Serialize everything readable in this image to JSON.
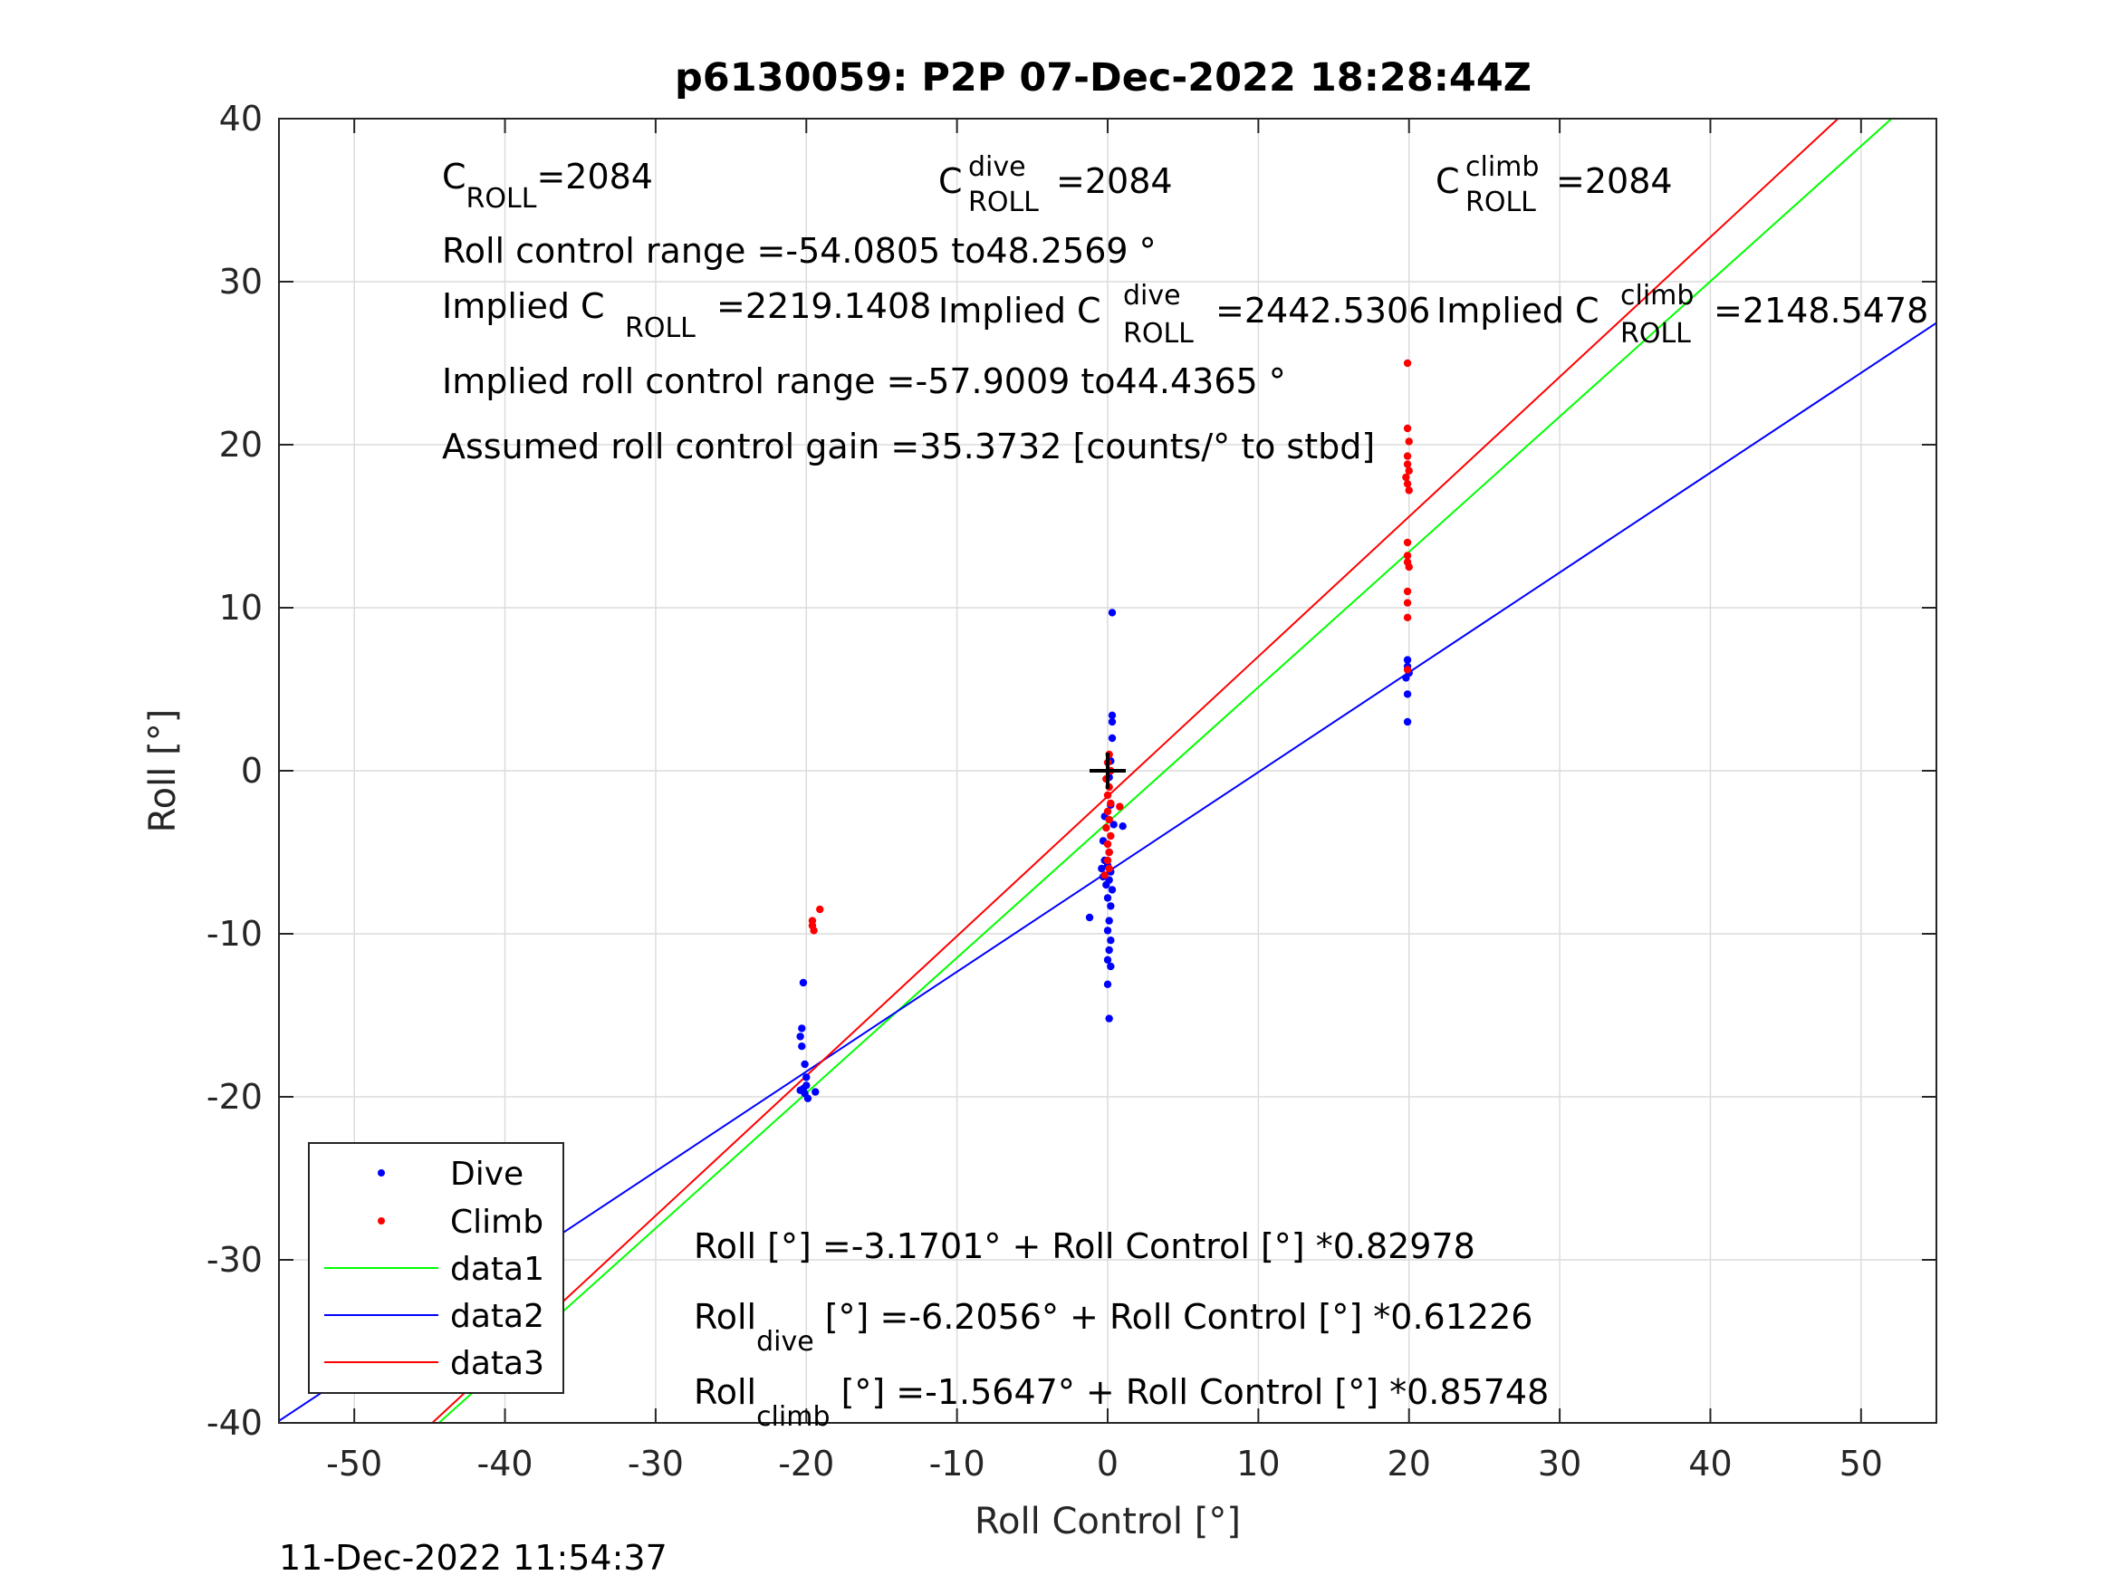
{
  "chart_data": {
    "type": "scatter",
    "title": "p6130059: P2P 07-Dec-2022 18:28:44Z",
    "xlabel": "Roll Control [°]",
    "ylabel": "Roll [°]",
    "xlim": [
      -55,
      55
    ],
    "ylim": [
      -40,
      40
    ],
    "xticks": [
      -50,
      -40,
      -30,
      -20,
      -10,
      0,
      10,
      20,
      30,
      40,
      50
    ],
    "yticks": [
      -40,
      -30,
      -20,
      -10,
      0,
      10,
      20,
      30,
      40
    ],
    "xtick_labels": [
      "-50",
      "-40",
      "-30",
      "-20",
      "-10",
      "0",
      "10",
      "20",
      "30",
      "40",
      "50"
    ],
    "ytick_labels": [
      "-40",
      "-30",
      "-20",
      "-10",
      "0",
      "10",
      "20",
      "30",
      "40"
    ],
    "grid": true,
    "legend_position": "bottom-left",
    "colors": {
      "dive": "#0000ff",
      "climb": "#ff0000",
      "data1": "#00ff00",
      "data2": "#0000ff",
      "data3": "#ff0000"
    },
    "series": [
      {
        "name": "Dive",
        "marker": "point",
        "color": "#0000ff",
        "points": [
          [
            -20.2,
            -13.0
          ],
          [
            -20.3,
            -15.8
          ],
          [
            -20.4,
            -16.3
          ],
          [
            -20.3,
            -16.9
          ],
          [
            -20.1,
            -18.0
          ],
          [
            -20.0,
            -18.8
          ],
          [
            -20.2,
            -19.5
          ],
          [
            -20.1,
            -19.8
          ],
          [
            -19.9,
            -20.1
          ],
          [
            -19.4,
            -19.7
          ],
          [
            -20.4,
            -19.6
          ],
          [
            -20.0,
            -19.3
          ],
          [
            0.3,
            9.7
          ],
          [
            0.3,
            3.4
          ],
          [
            0.3,
            3.0
          ],
          [
            0.3,
            2.0
          ],
          [
            0.2,
            0.6
          ],
          [
            0.1,
            -0.4
          ],
          [
            0.2,
            -2.1
          ],
          [
            -0.2,
            -2.8
          ],
          [
            0.4,
            -3.3
          ],
          [
            1.0,
            -3.4
          ],
          [
            -0.3,
            -4.3
          ],
          [
            0.1,
            -5.0
          ],
          [
            -0.2,
            -5.5
          ],
          [
            0.0,
            -5.8
          ],
          [
            -0.4,
            -6.0
          ],
          [
            0.2,
            -6.2
          ],
          [
            -0.3,
            -6.5
          ],
          [
            0.1,
            -6.7
          ],
          [
            -0.1,
            -7.0
          ],
          [
            0.3,
            -7.3
          ],
          [
            0.0,
            -7.8
          ],
          [
            0.2,
            -8.3
          ],
          [
            -1.2,
            -9.0
          ],
          [
            0.1,
            -9.2
          ],
          [
            0.0,
            -9.8
          ],
          [
            0.2,
            -10.4
          ],
          [
            0.1,
            -11.0
          ],
          [
            0.0,
            -11.6
          ],
          [
            0.2,
            -12.0
          ],
          [
            0.0,
            -13.1
          ],
          [
            0.1,
            -15.2
          ],
          [
            19.9,
            6.8
          ],
          [
            19.9,
            6.4
          ],
          [
            20.0,
            6.0
          ],
          [
            19.8,
            5.7
          ],
          [
            19.9,
            4.7
          ],
          [
            19.9,
            3.0
          ]
        ]
      },
      {
        "name": "Climb",
        "marker": "point",
        "color": "#ff0000",
        "points": [
          [
            -19.1,
            -8.5
          ],
          [
            -19.6,
            -9.2
          ],
          [
            -19.6,
            -9.5
          ],
          [
            -19.5,
            -9.8
          ],
          [
            0.1,
            1.0
          ],
          [
            0.0,
            0.5
          ],
          [
            0.2,
            0.0
          ],
          [
            -0.1,
            -0.5
          ],
          [
            0.1,
            -1.0
          ],
          [
            0.0,
            -1.5
          ],
          [
            0.2,
            -2.0
          ],
          [
            0.0,
            -2.5
          ],
          [
            0.1,
            -3.0
          ],
          [
            -0.1,
            -3.5
          ],
          [
            0.2,
            -4.0
          ],
          [
            0.0,
            -4.5
          ],
          [
            0.1,
            -5.0
          ],
          [
            0.0,
            -5.5
          ],
          [
            0.1,
            -6.0
          ],
          [
            0.8,
            -2.2
          ],
          [
            -0.2,
            -6.4
          ],
          [
            19.9,
            25.0
          ],
          [
            19.9,
            21.0
          ],
          [
            20.0,
            20.2
          ],
          [
            19.9,
            19.3
          ],
          [
            19.9,
            18.8
          ],
          [
            20.0,
            18.4
          ],
          [
            19.8,
            18.0
          ],
          [
            19.9,
            17.6
          ],
          [
            20.0,
            17.2
          ],
          [
            19.9,
            14.0
          ],
          [
            19.9,
            13.2
          ],
          [
            19.9,
            12.8
          ],
          [
            20.0,
            12.5
          ],
          [
            19.9,
            11.0
          ],
          [
            19.9,
            10.3
          ],
          [
            19.9,
            9.4
          ],
          [
            19.9,
            6.2
          ]
        ]
      },
      {
        "name": "data1",
        "type": "line",
        "color": "#00ff00",
        "intercept": -3.1701,
        "slope": 0.82978
      },
      {
        "name": "data2",
        "type": "line",
        "color": "#0000ff",
        "intercept": -6.2056,
        "slope": 0.61226
      },
      {
        "name": "data3",
        "type": "line",
        "color": "#ff0000",
        "intercept": -1.5647,
        "slope": 0.85748
      }
    ],
    "center_marker": {
      "x": 0,
      "y": 0
    },
    "annotations": {
      "c_roll_main": "C",
      "c_roll_sub": "ROLL",
      "c_roll_val": "=2084",
      "c_dive_main": "C",
      "c_dive_sup": "dive",
      "c_dive_sub": "ROLL",
      "c_dive_val": "=2084",
      "c_climb_main": "C",
      "c_climb_sup": "climb",
      "c_climb_sub": "ROLL",
      "c_climb_val": "=2084",
      "roll_range": "Roll control range =-54.0805 to48.2569 °",
      "implied_c_prefix": "Implied C",
      "implied_c_sub": "ROLL",
      "implied_c_val": "=2219.1408",
      "implied_dive_prefix": "Implied C",
      "implied_dive_sup": "dive",
      "implied_dive_sub": "ROLL",
      "implied_dive_val": "=2442.5306",
      "implied_climb_prefix": "Implied C",
      "implied_climb_sup": "climb",
      "implied_climb_sub": "ROLL",
      "implied_climb_val": "=2148.5478",
      "implied_range": "Implied roll control range =-57.9009 to44.4365 °",
      "gain": "Assumed roll control gain =35.3732 [counts/° to stbd]",
      "fit_all": "Roll [°] =-3.1701° + Roll Control [°] *0.82978",
      "fit_dive_main": "Roll",
      "fit_dive_sub": "dive",
      "fit_dive_rest": " [°] =-6.2056° + Roll Control [°] *0.61226",
      "fit_climb_main": "Roll",
      "fit_climb_sub": "climb",
      "fit_climb_rest": " [°] =-1.5647° + Roll Control [°] *0.85748"
    },
    "footer_timestamp": "11-Dec-2022 11:54:37"
  }
}
